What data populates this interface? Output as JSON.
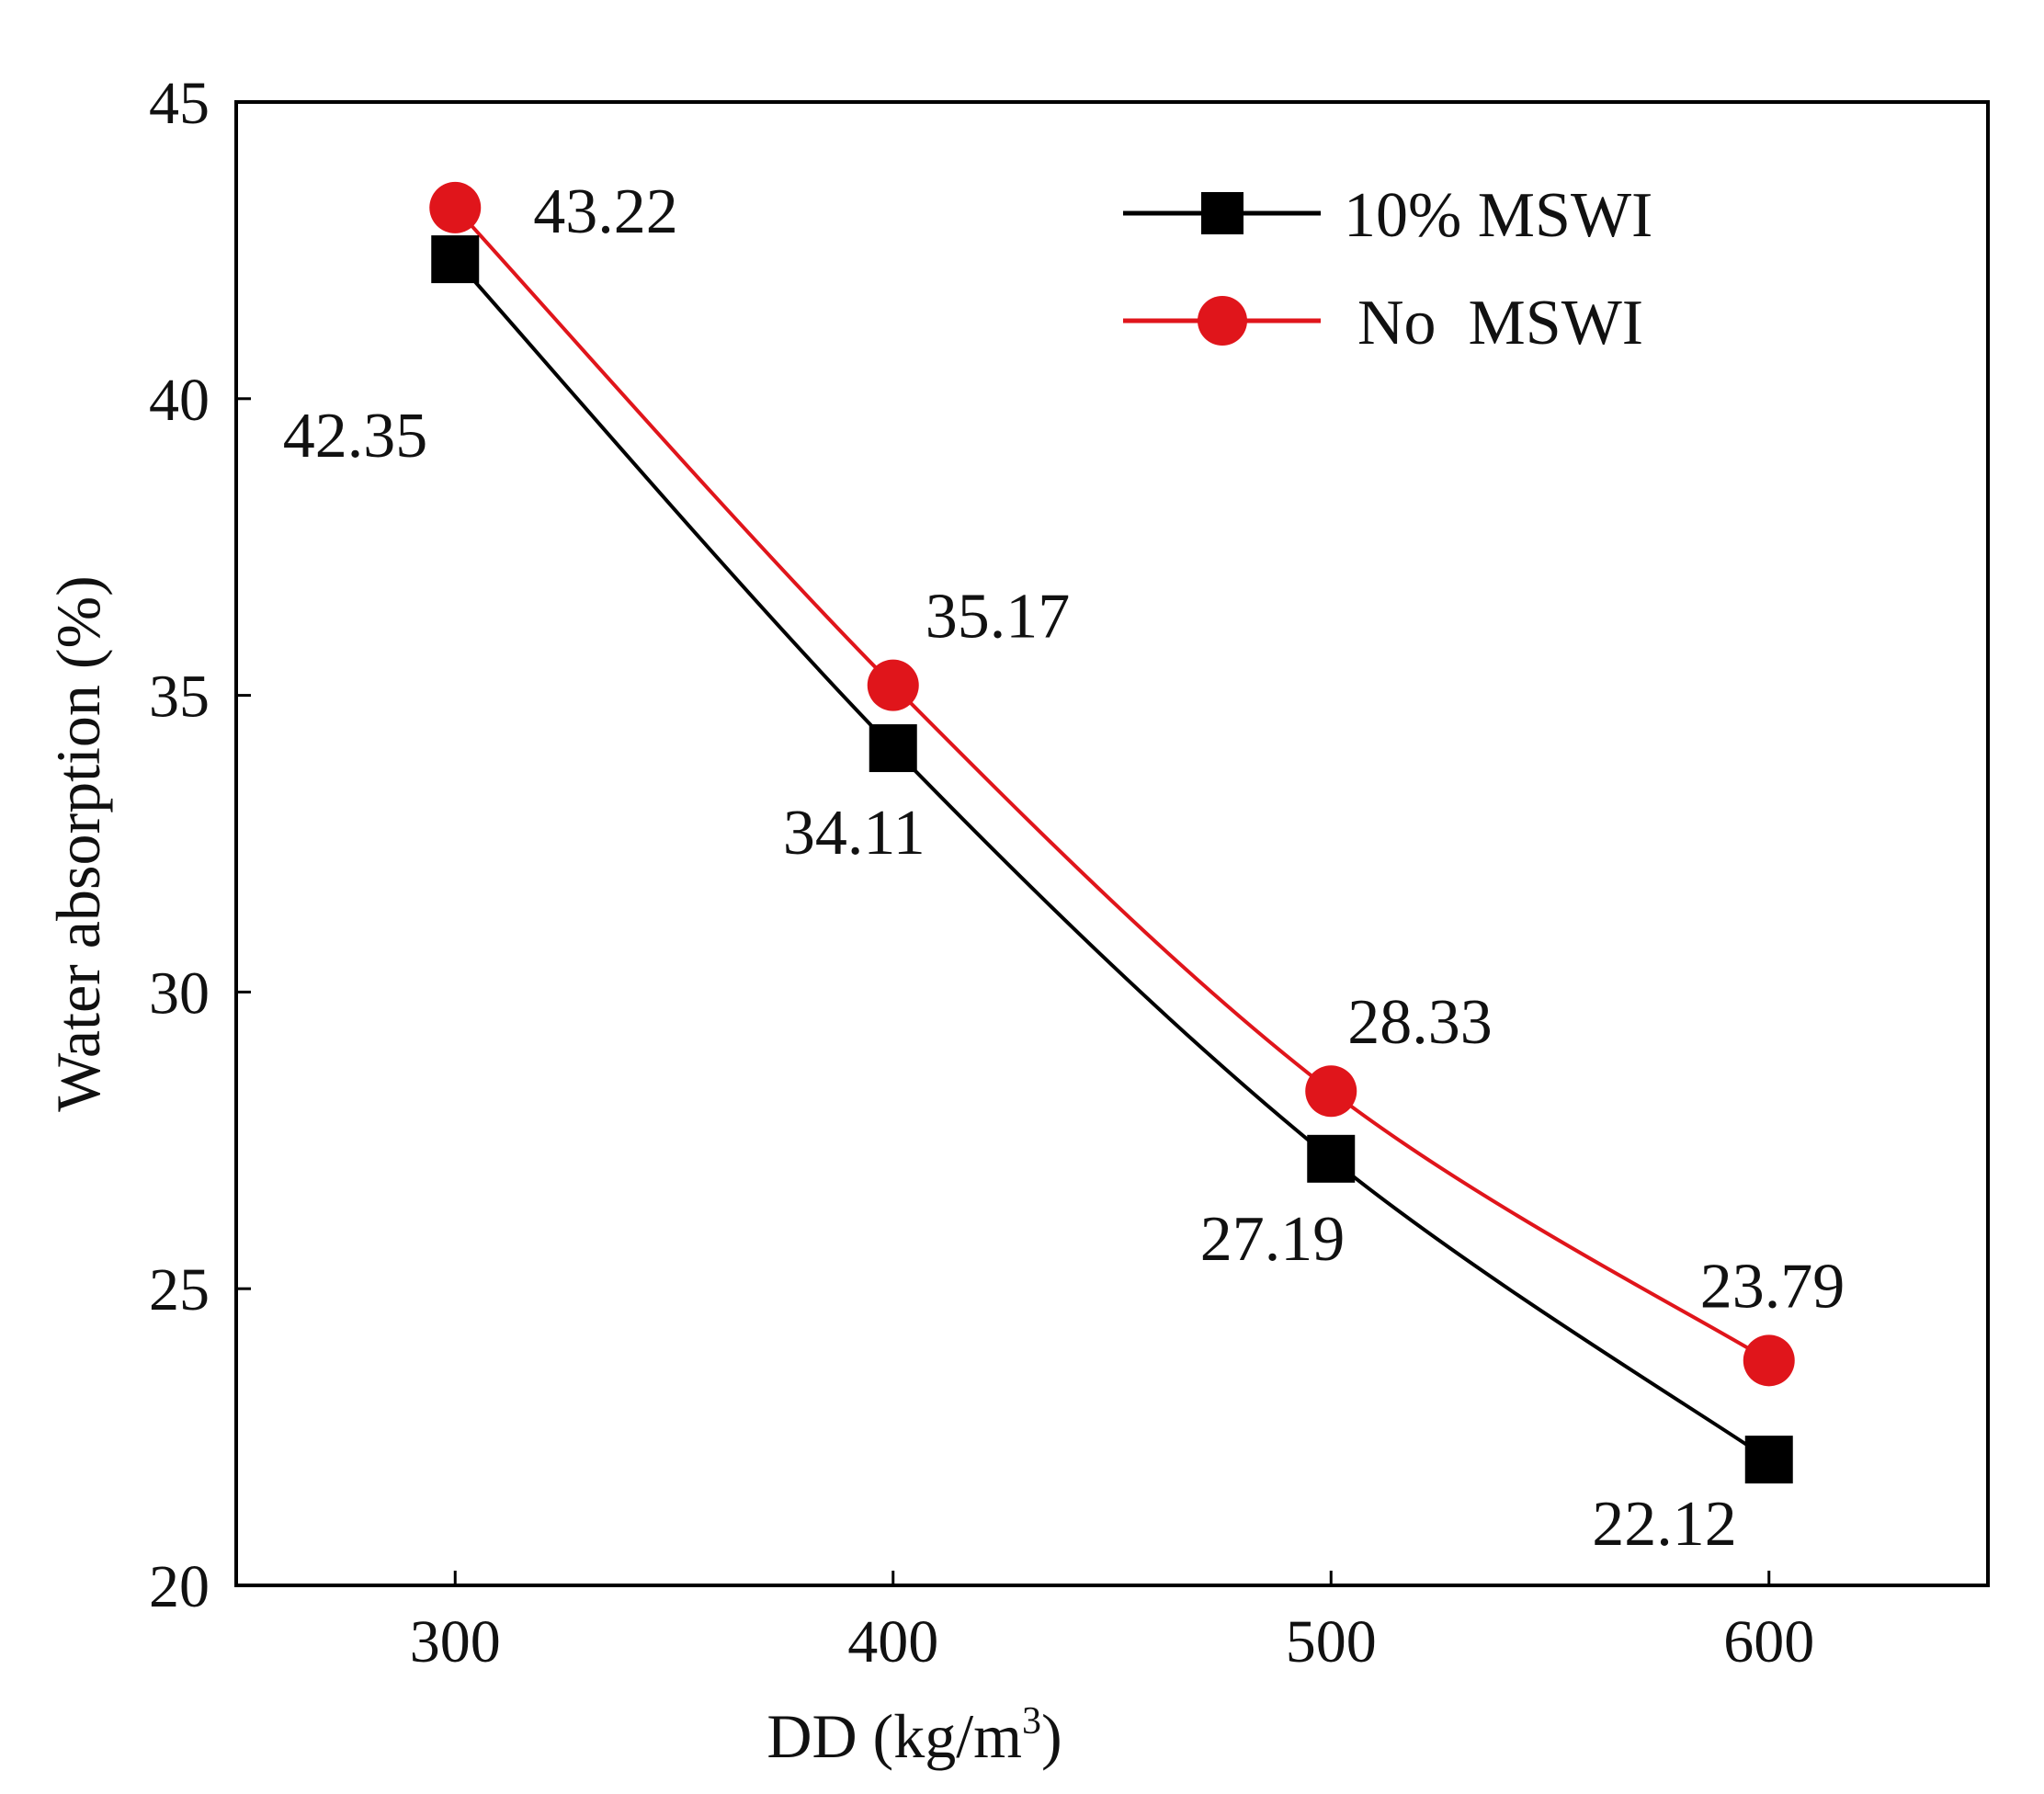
{
  "chart_data": {
    "type": "line",
    "title": "",
    "xlabel": "DD (kg/m",
    "xlabel_superscript": "3",
    "xlabel_suffix": ")",
    "ylabel": "Water absorption (%)",
    "x": [
      300,
      400,
      500,
      600
    ],
    "xlim": [
      250,
      650
    ],
    "ylim": [
      20,
      45
    ],
    "xticks": [
      300,
      400,
      500,
      600
    ],
    "yticks": [
      20,
      25,
      30,
      35,
      40,
      45
    ],
    "grid": false,
    "legend_position": "top-right",
    "series": [
      {
        "name": "10% MSWI",
        "marker": "square",
        "color": "#000000",
        "values": [
          42.35,
          34.11,
          27.19,
          22.12
        ],
        "labels": [
          "42.35",
          "34.11",
          "27.19",
          "22.12"
        ]
      },
      {
        "name": "No  MSWI",
        "marker": "circle",
        "color": "#e0151b",
        "values": [
          43.22,
          35.17,
          28.33,
          23.79
        ],
        "labels": [
          "43.22",
          "35.17",
          "28.33",
          "23.79"
        ]
      }
    ]
  }
}
